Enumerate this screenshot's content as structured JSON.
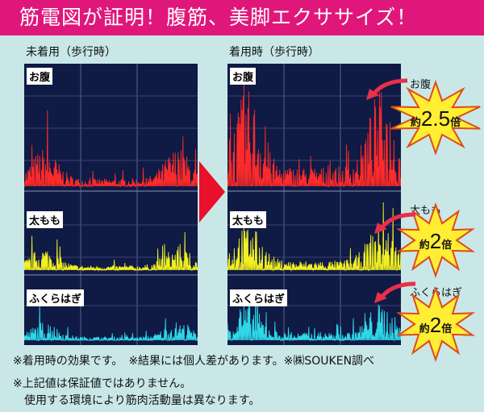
{
  "title": "筋電図が証明！腹筋、美脚エクササイズ！",
  "chart_data": {
    "type": "line",
    "title": "筋電図",
    "panels": [
      {
        "name": "未着用（歩行時）"
      },
      {
        "name": "着用時（歩行時）"
      }
    ],
    "series": [
      {
        "name": "お腹",
        "color": "#ff2a2a",
        "relative_activity": {
          "before": 1,
          "after": 2.5
        }
      },
      {
        "name": "太もも",
        "color": "#f2f020",
        "relative_activity": {
          "before": 1,
          "after": 2
        }
      },
      {
        "name": "ふくらはぎ",
        "color": "#2fd8e8",
        "relative_activity": {
          "before": 1,
          "after": 2
        }
      }
    ],
    "xlabel": "",
    "ylabel": ""
  },
  "captions": {
    "before": "未着用（歩行時）",
    "after": "着用時（歩行時）"
  },
  "badges": [
    {
      "label": "お腹",
      "prefix": "約",
      "value": "2.5",
      "suffix": "倍"
    },
    {
      "label": "太もも",
      "prefix": "約",
      "value": "2",
      "suffix": "倍"
    },
    {
      "label": "ふくらはぎ",
      "prefix": "約",
      "value": "2",
      "suffix": "倍"
    }
  ],
  "notes": [
    "※着用時の効果です。　※結果には個人差があります。※㈱SOUKEN調べ",
    "※上記値は保証値ではありません。",
    "　使用する環境により筋肉活動量は異なります。"
  ],
  "colors": {
    "title_bg": "#e0177b",
    "bg": "#c9e7e7",
    "panel": "#0f1a45",
    "star": "#ffee33"
  }
}
